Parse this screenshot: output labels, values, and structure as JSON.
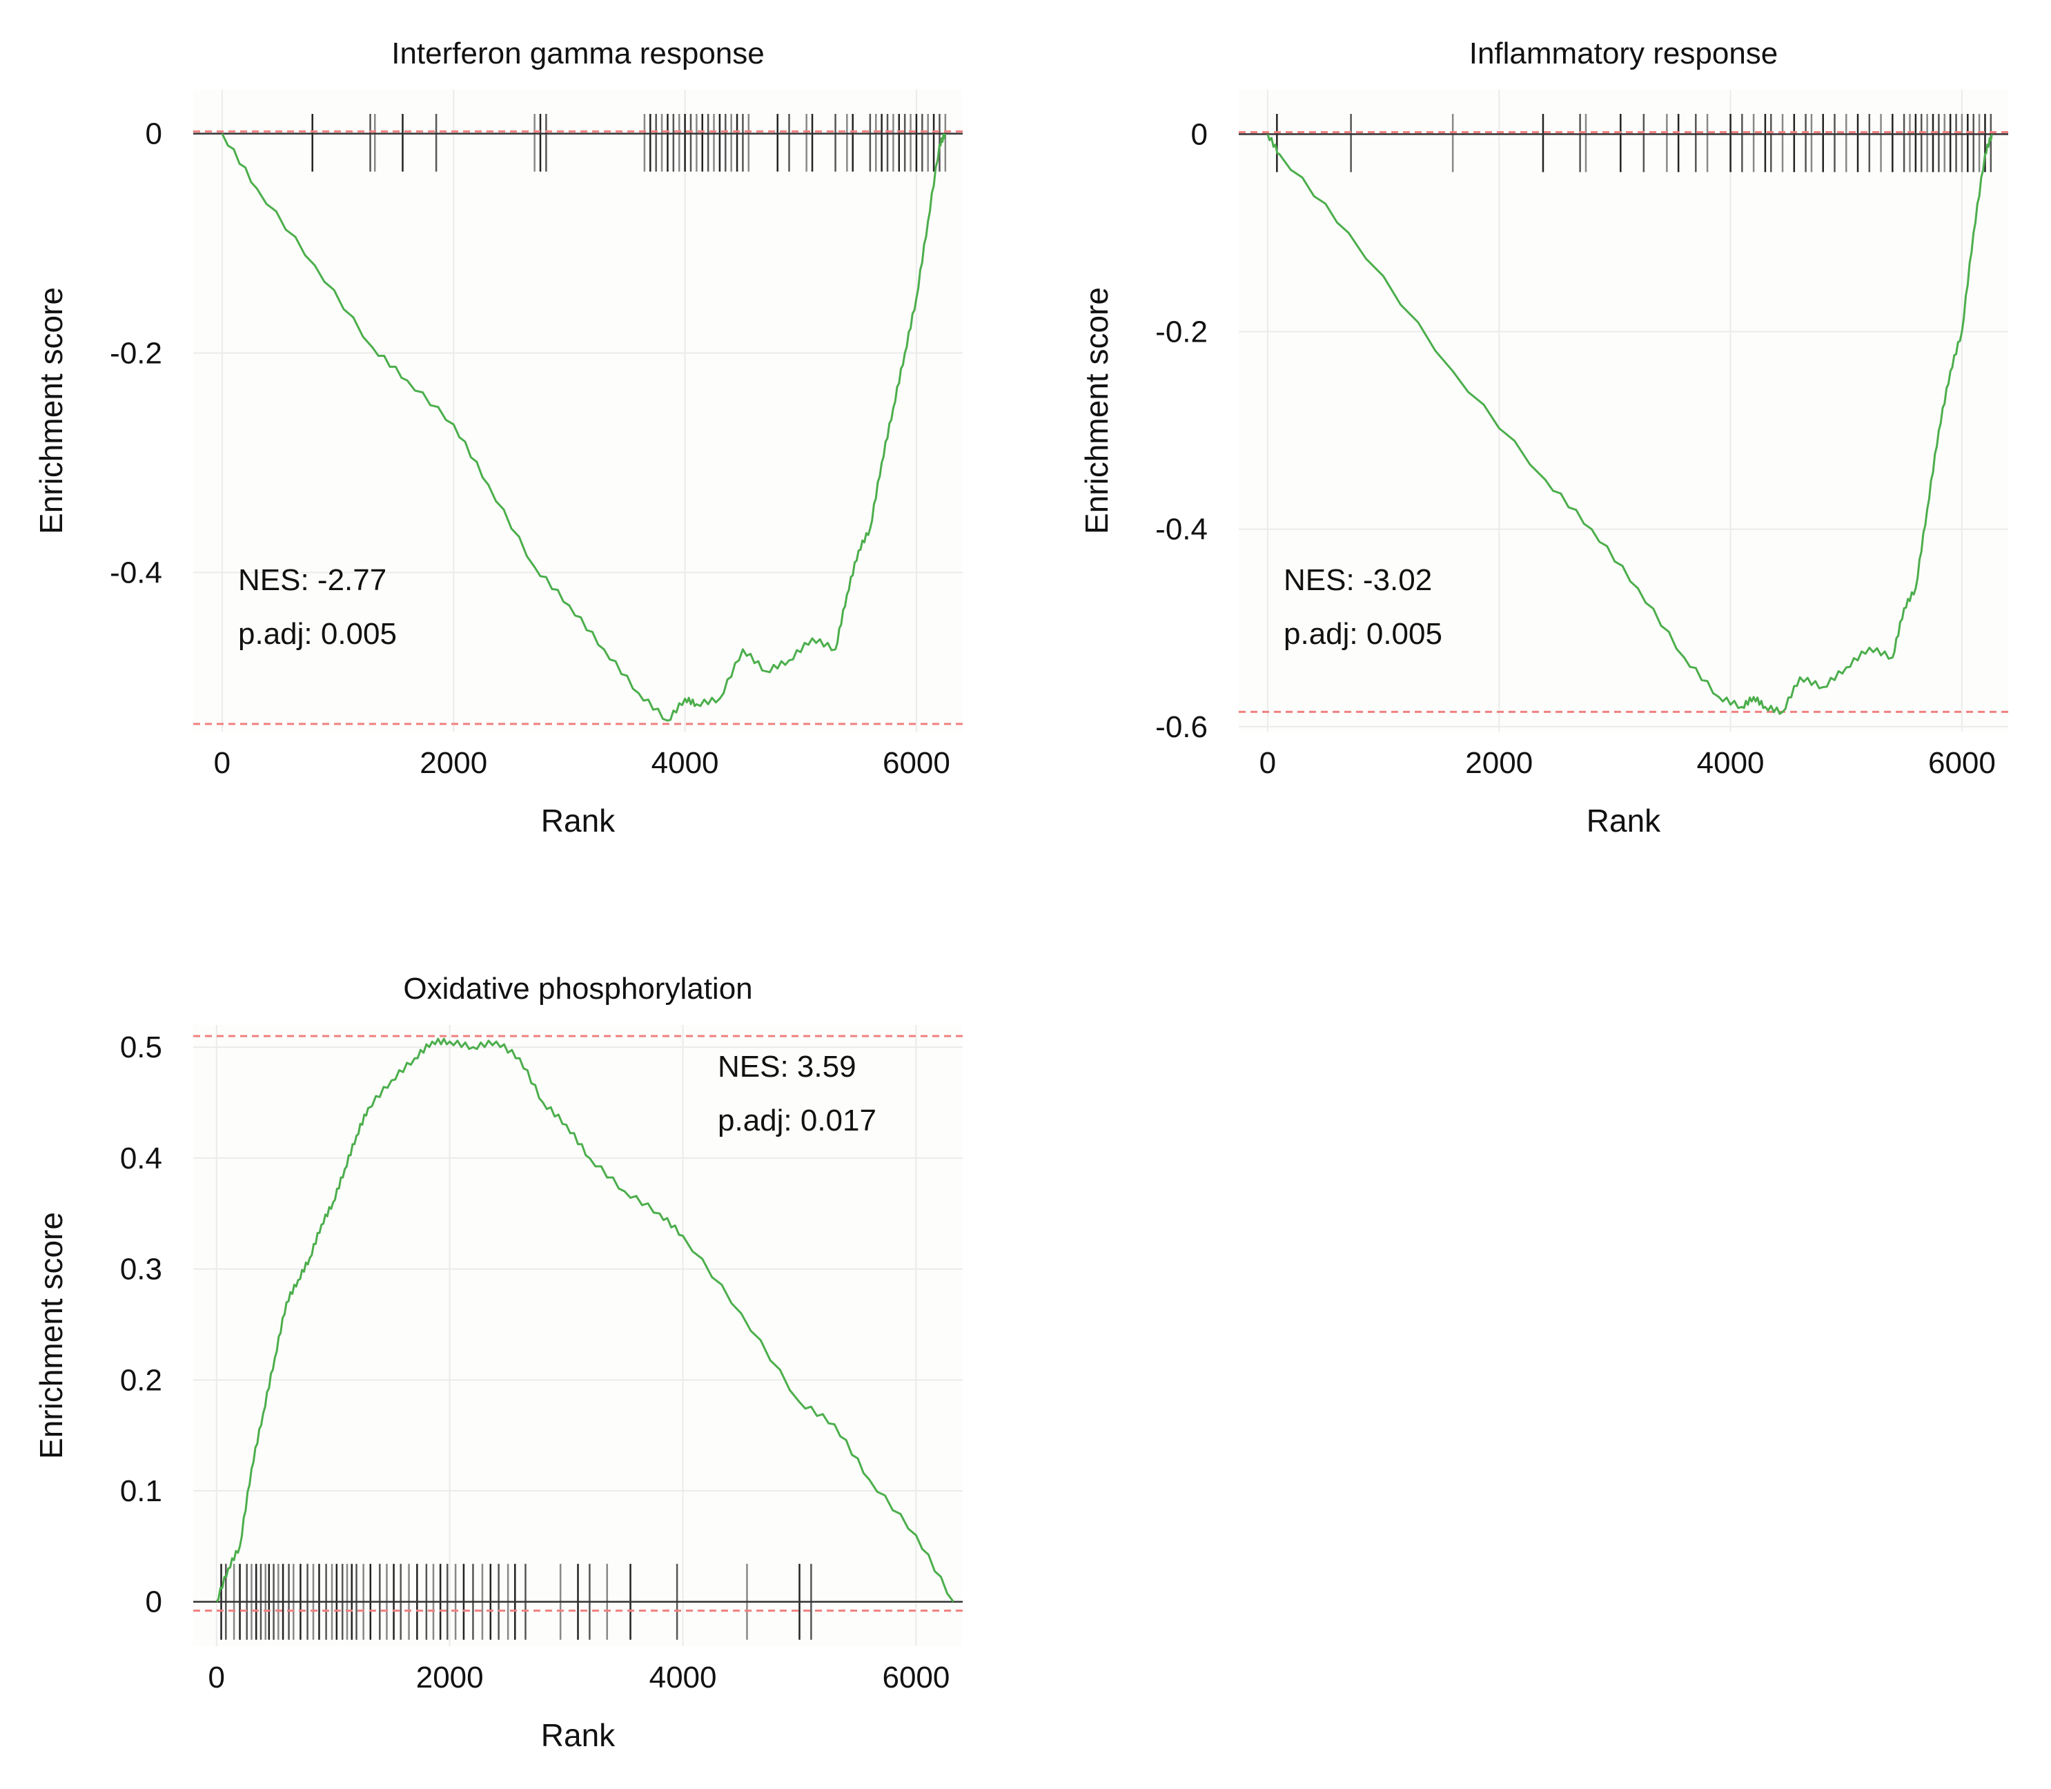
{
  "chart_data": [
    {
      "type": "line",
      "title": "Interferon gamma response",
      "xlabel": "Rank",
      "ylabel": "Enrichment score",
      "xlim": [
        -250,
        6400
      ],
      "ylim": [
        -0.545,
        0.04
      ],
      "xticks": [
        0,
        2000,
        4000,
        6000
      ],
      "xtick_labels": [
        "0",
        "2000",
        "4000",
        "6000"
      ],
      "yticks": [
        0,
        -0.2,
        -0.4
      ],
      "ytick_labels": [
        "0",
        "-0.2",
        "-0.4"
      ],
      "grid": true,
      "line_color": "#4cae4c",
      "ref_line_color": "#f08080",
      "ref_lines": [
        0.002,
        -0.538
      ],
      "nes_label": "NES: -2.77",
      "padj_label": "p.adj: 0.005",
      "annotation_position": "bottom-left",
      "hit_band": "top",
      "es_curve": {
        "x": [
          0,
          300,
          800,
          1300,
          1600,
          2000,
          2300,
          2700,
          3000,
          3300,
          3600,
          3850,
          4000,
          4100,
          4300,
          4500,
          4700,
          4900,
          5100,
          5300,
          5400,
          5500,
          5600,
          5700,
          5800,
          5900,
          6000,
          6100,
          6200,
          6250
        ],
        "y": [
          0,
          -0.05,
          -0.12,
          -0.195,
          -0.225,
          -0.265,
          -0.32,
          -0.395,
          -0.43,
          -0.47,
          -0.51,
          -0.535,
          -0.515,
          -0.52,
          -0.515,
          -0.47,
          -0.49,
          -0.48,
          -0.46,
          -0.47,
          -0.42,
          -0.38,
          -0.36,
          -0.3,
          -0.25,
          -0.2,
          -0.15,
          -0.08,
          -0.01,
          0
        ]
      },
      "hits": [
        780,
        1280,
        1320,
        1560,
        1850,
        2700,
        2750,
        2800,
        3650,
        3700,
        3750,
        3800,
        3850,
        3900,
        3950,
        4000,
        4050,
        4100,
        4150,
        4200,
        4250,
        4300,
        4350,
        4400,
        4450,
        4500,
        4550,
        4800,
        4900,
        5050,
        5100,
        5300,
        5400,
        5450,
        5600,
        5650,
        5700,
        5750,
        5800,
        5850,
        5900,
        5950,
        6000,
        6050,
        6100,
        6150,
        6200,
        6250
      ]
    },
    {
      "type": "line",
      "title": "Inflammatory response",
      "xlabel": "Rank",
      "ylabel": "Enrichment score",
      "xlim": [
        -250,
        6400
      ],
      "ylim": [
        -0.605,
        0.045
      ],
      "xticks": [
        0,
        2000,
        4000,
        6000
      ],
      "xtick_labels": [
        "0",
        "2000",
        "4000",
        "6000"
      ],
      "yticks": [
        0,
        -0.2,
        -0.4,
        -0.6
      ],
      "ytick_labels": [
        "0",
        "-0.2",
        "-0.4",
        "-0.6"
      ],
      "grid": true,
      "line_color": "#4cae4c",
      "ref_line_color": "#f08080",
      "ref_lines": [
        0.002,
        -0.585
      ],
      "nes_label": "NES: -3.02",
      "padj_label": "p.adj: 0.005",
      "annotation_position": "bottom-left",
      "hit_band": "top",
      "es_curve": {
        "x": [
          0,
          100,
          700,
          1600,
          2400,
          2800,
          3200,
          3600,
          3900,
          4100,
          4200,
          4300,
          4450,
          4600,
          4800,
          5000,
          5200,
          5400,
          5500,
          5600,
          5700,
          5800,
          5900,
          6000,
          6100,
          6200,
          6260
        ],
        "y": [
          0,
          -0.02,
          -0.1,
          -0.24,
          -0.35,
          -0.4,
          -0.46,
          -0.53,
          -0.57,
          -0.58,
          -0.57,
          -0.58,
          -0.585,
          -0.55,
          -0.56,
          -0.54,
          -0.52,
          -0.53,
          -0.48,
          -0.46,
          -0.38,
          -0.3,
          -0.24,
          -0.2,
          -0.1,
          -0.02,
          0
        ]
      },
      "hits": [
        80,
        720,
        1600,
        2380,
        2700,
        2750,
        3050,
        3250,
        3450,
        3550,
        3700,
        3800,
        4000,
        4100,
        4200,
        4300,
        4350,
        4450,
        4550,
        4650,
        4700,
        4800,
        4900,
        5000,
        5100,
        5200,
        5300,
        5400,
        5500,
        5550,
        5600,
        5650,
        5700,
        5750,
        5800,
        5850,
        5900,
        5950,
        6000,
        6050,
        6100,
        6150,
        6200,
        6250
      ]
    },
    {
      "type": "line",
      "title": "Oxidative phosphorylation",
      "xlabel": "Rank",
      "ylabel": "Enrichment score",
      "xlim": [
        -200,
        6400
      ],
      "ylim": [
        -0.04,
        0.52
      ],
      "xticks": [
        0,
        2000,
        4000,
        6000
      ],
      "xtick_labels": [
        "0",
        "2000",
        "4000",
        "6000"
      ],
      "yticks": [
        0.5,
        0.4,
        0.3,
        0.2,
        0.1,
        0
      ],
      "ytick_labels": [
        "0.5",
        "0.4",
        "0.3",
        "0.2",
        "0.1",
        "0"
      ],
      "grid": true,
      "line_color": "#4cae4c",
      "ref_line_color": "#f08080",
      "ref_lines": [
        0.51,
        -0.008
      ],
      "nes_label": "NES: 3.59",
      "padj_label": "p.adj: 0.017",
      "annotation_position": "top-right",
      "hit_band": "bottom",
      "es_curve": {
        "x": [
          0,
          100,
          200,
          300,
          400,
          500,
          600,
          700,
          800,
          900,
          1000,
          1100,
          1200,
          1300,
          1500,
          1700,
          1850,
          2000,
          2200,
          2400,
          2600,
          2800,
          3000,
          3200,
          3500,
          3800,
          4000,
          4500,
          5000,
          5300,
          5600,
          6000,
          6320
        ],
        "y": [
          0,
          0.03,
          0.05,
          0.12,
          0.17,
          0.22,
          0.27,
          0.29,
          0.31,
          0.34,
          0.36,
          0.39,
          0.42,
          0.445,
          0.47,
          0.49,
          0.505,
          0.505,
          0.5,
          0.505,
          0.49,
          0.45,
          0.43,
          0.4,
          0.37,
          0.35,
          0.33,
          0.26,
          0.18,
          0.16,
          0.11,
          0.06,
          0
        ]
      },
      "hits": [
        40,
        80,
        150,
        200,
        260,
        300,
        340,
        380,
        420,
        450,
        490,
        530,
        570,
        620,
        660,
        720,
        780,
        830,
        880,
        940,
        990,
        1030,
        1080,
        1120,
        1160,
        1200,
        1260,
        1320,
        1400,
        1460,
        1520,
        1580,
        1650,
        1720,
        1800,
        1860,
        1920,
        1980,
        2050,
        2120,
        2200,
        2280,
        2350,
        2420,
        2500,
        2560,
        2650,
        2950,
        3100,
        3200,
        3350,
        3550,
        3950,
        4550,
        5000,
        5100
      ]
    }
  ]
}
